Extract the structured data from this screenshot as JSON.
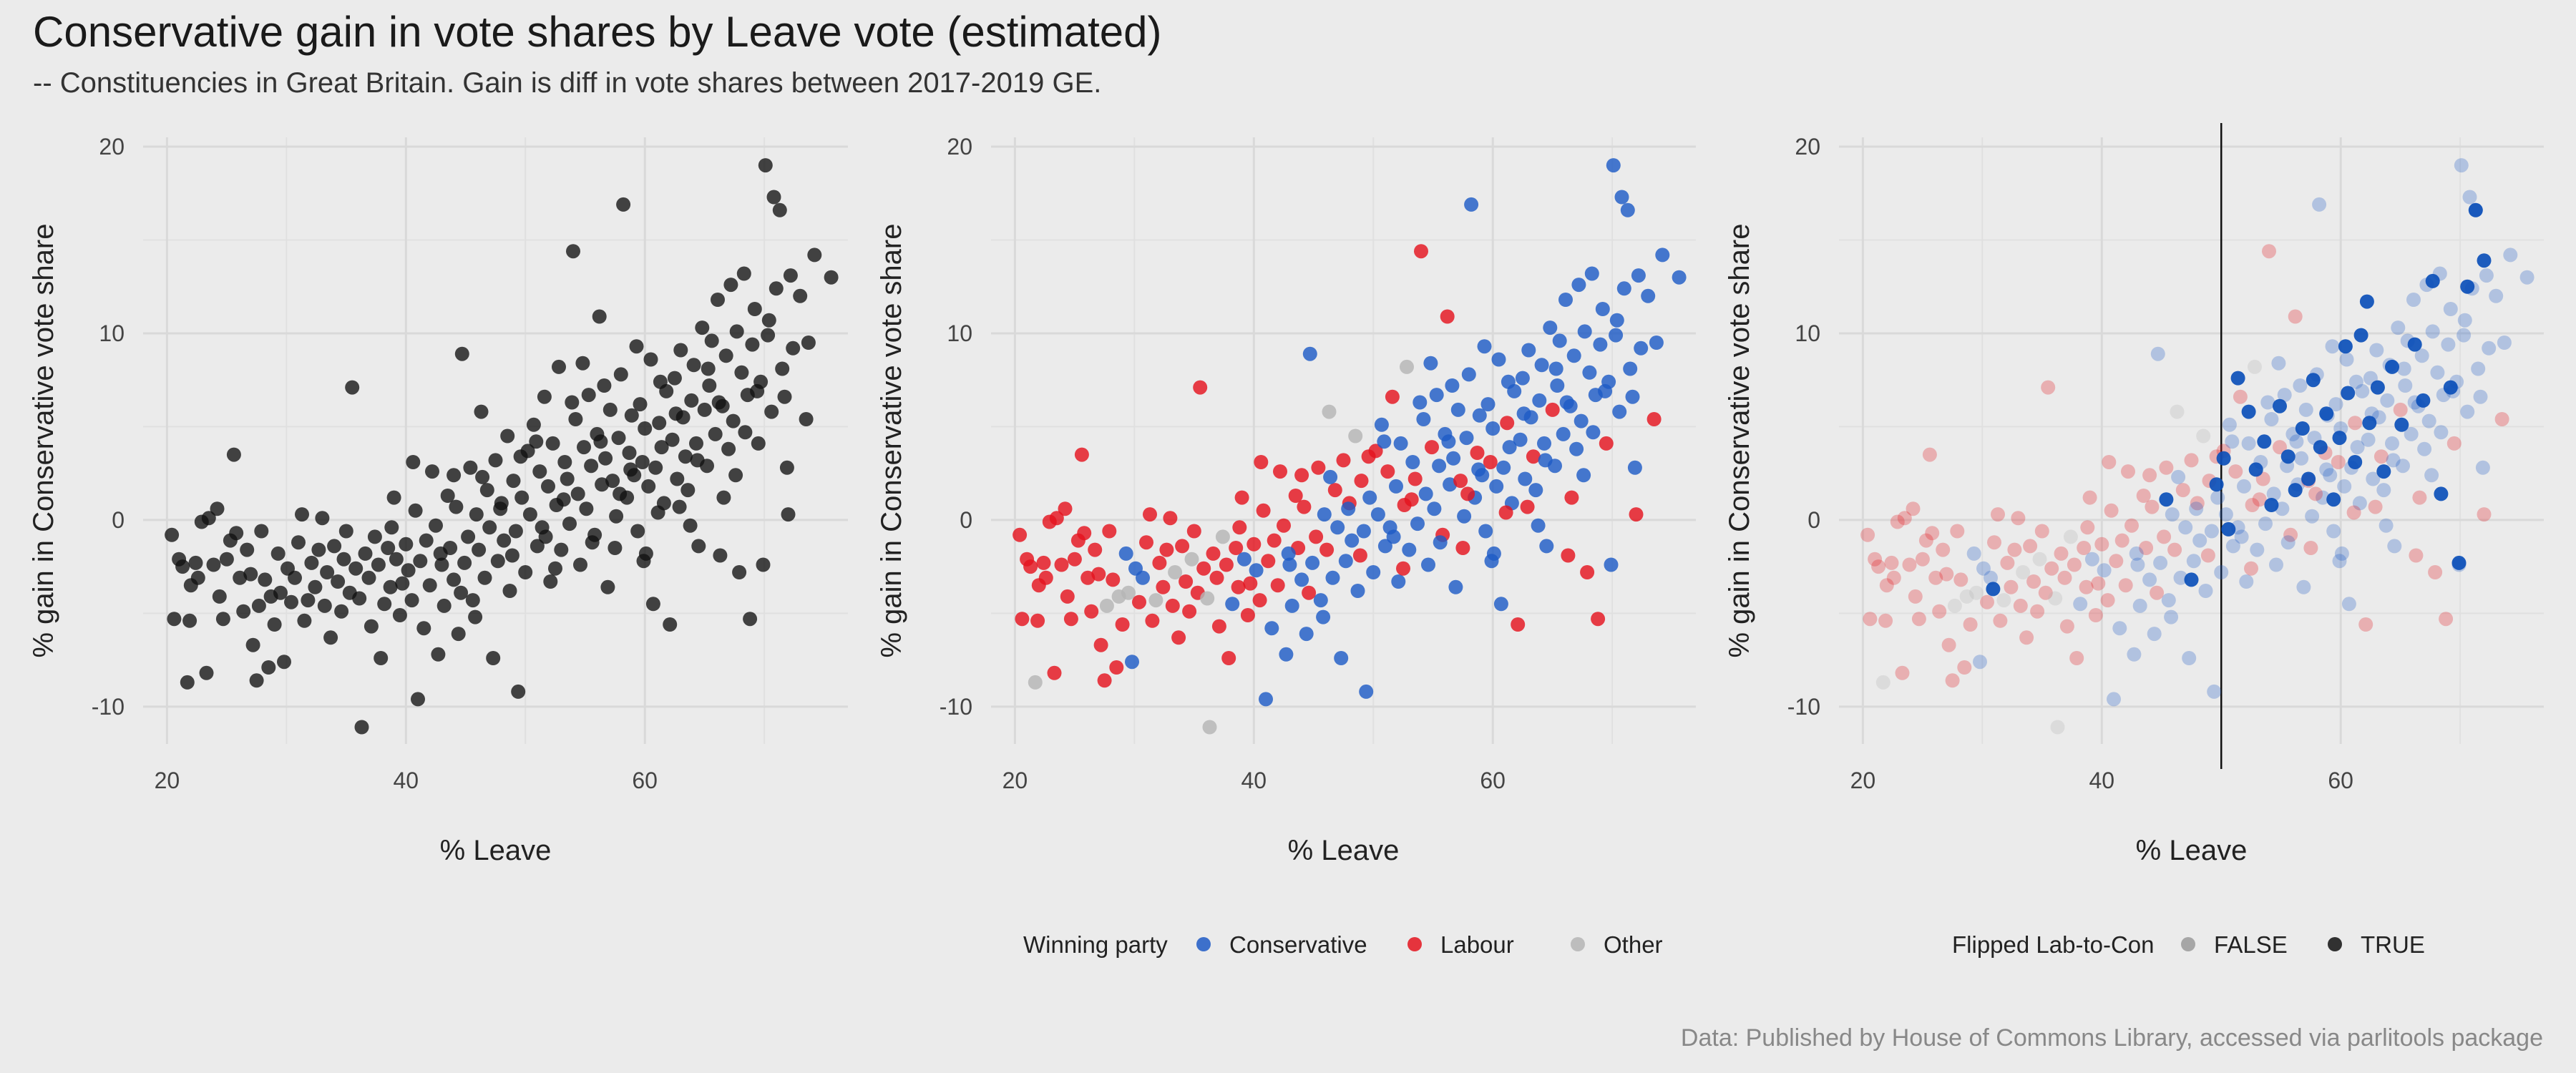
{
  "title": "Conservative gain in vote shares by Leave vote (estimated)",
  "subtitle": "-- Constituencies in Great Britain. Gain is diff in vote shares between 2017-2019 GE.",
  "caption": "Data: Published by House of Commons Library, accessed via parlitools package",
  "colors": {
    "conservative": "#1e5bc6",
    "labour": "#e4141e",
    "other": "#b5b5b5",
    "black": "#111111",
    "grid": "#d9d9d9"
  },
  "chart_data": [
    {
      "type": "scatter",
      "panel": "all-seats",
      "xlabel": "% Leave",
      "ylabel": "% gain in Conservative vote share",
      "xlim": [
        18,
        77
      ],
      "ylim": [
        -12,
        20.5
      ],
      "xticks": [
        20,
        40,
        60
      ],
      "yticks": [
        -10,
        0,
        10,
        20
      ],
      "grid": true,
      "color_by": "none",
      "legend": null
    },
    {
      "type": "scatter",
      "panel": "by-winning-party",
      "xlabel": "% Leave",
      "ylabel": "% gain in Conservative vote share",
      "xlim": [
        18,
        77
      ],
      "ylim": [
        -12,
        20.5
      ],
      "xticks": [
        20,
        40,
        60
      ],
      "yticks": [
        -10,
        0,
        10,
        20
      ],
      "grid": true,
      "color_by": "party",
      "legend": {
        "position": "bottom",
        "title": "Winning party",
        "entries": [
          "Conservative",
          "Labour",
          "Other"
        ]
      }
    },
    {
      "type": "scatter",
      "panel": "flipped-lab-to-con",
      "xlabel": "% Leave",
      "ylabel": "% gain in Conservative vote share",
      "xlim": [
        18,
        77
      ],
      "ylim": [
        -12,
        20.5
      ],
      "xticks": [
        20,
        40,
        60
      ],
      "yticks": [
        -10,
        0,
        10,
        20
      ],
      "grid": true,
      "color_by": "party-alpha-flipped",
      "vline_x": 50,
      "legend": {
        "position": "bottom",
        "title": "Flipped Lab-to-Con",
        "entries": [
          "FALSE",
          "TRUE"
        ]
      }
    }
  ],
  "points": [
    [
      20.4,
      -0.8,
      "lab"
    ],
    [
      20.6,
      -5.3,
      "lab"
    ],
    [
      21,
      -2.1,
      "lab"
    ],
    [
      21.3,
      -2.5,
      "lab"
    ],
    [
      21.7,
      -8.7,
      "oth"
    ],
    [
      21.9,
      -5.4,
      "lab"
    ],
    [
      22,
      -3.5,
      "lab"
    ],
    [
      22.4,
      -2.3,
      "lab"
    ],
    [
      22.6,
      -3.1,
      "lab"
    ],
    [
      22.9,
      -0.1,
      "lab"
    ],
    [
      23.3,
      -8.2,
      "lab"
    ],
    [
      23.5,
      0.1,
      "lab"
    ],
    [
      23.9,
      -2.4,
      "lab"
    ],
    [
      24.2,
      0.6,
      "lab"
    ],
    [
      24.4,
      -4.1,
      "lab"
    ],
    [
      24.7,
      -5.3,
      "lab"
    ],
    [
      25,
      -2.1,
      "lab"
    ],
    [
      25.3,
      -1.1,
      "lab"
    ],
    [
      25.6,
      3.5,
      "lab"
    ],
    [
      25.8,
      -0.7,
      "lab"
    ],
    [
      26.1,
      -3.1,
      "lab"
    ],
    [
      26.4,
      -4.9,
      "lab"
    ],
    [
      26.7,
      -1.6,
      "lab"
    ],
    [
      27,
      -2.9,
      "lab"
    ],
    [
      27.2,
      -6.7,
      "lab"
    ],
    [
      27.5,
      -8.6,
      "lab"
    ],
    [
      27.7,
      -4.6,
      "oth"
    ],
    [
      27.9,
      -0.6,
      "lab"
    ],
    [
      28.2,
      -3.2,
      "lab"
    ],
    [
      28.5,
      -7.9,
      "lab"
    ],
    [
      28.7,
      -4.1,
      "oth"
    ],
    [
      29,
      -5.6,
      "lab"
    ],
    [
      29.3,
      -1.8,
      "con"
    ],
    [
      29.5,
      -3.9,
      "oth"
    ],
    [
      29.8,
      -7.6,
      "con"
    ],
    [
      30.1,
      -2.6,
      "con"
    ],
    [
      30.4,
      -4.4,
      "lab"
    ],
    [
      30.7,
      -3.1,
      "con"
    ],
    [
      31,
      -1.2,
      "lab"
    ],
    [
      31.3,
      0.3,
      "lab"
    ],
    [
      31.5,
      -5.4,
      "lab"
    ],
    [
      31.8,
      -4.3,
      "oth"
    ],
    [
      32.1,
      -2.3,
      "lab"
    ],
    [
      32.4,
      -3.6,
      "lab"
    ],
    [
      32.7,
      -1.6,
      "lab"
    ],
    [
      33,
      0.1,
      "lab"
    ],
    [
      33.2,
      -4.6,
      "lab"
    ],
    [
      33.4,
      -2.8,
      "oth"
    ],
    [
      33.7,
      -6.3,
      "lab"
    ],
    [
      34,
      -1.4,
      "lab"
    ],
    [
      34.3,
      -3.3,
      "lab"
    ],
    [
      34.6,
      -4.9,
      "lab"
    ],
    [
      34.8,
      -2.1,
      "oth"
    ],
    [
      35,
      -0.6,
      "lab"
    ],
    [
      35.3,
      -3.9,
      "lab"
    ],
    [
      35.5,
      7.1,
      "lab"
    ],
    [
      35.8,
      -2.6,
      "lab"
    ],
    [
      36.1,
      -4.2,
      "oth"
    ],
    [
      36.3,
      -11.1,
      "oth"
    ],
    [
      36.6,
      -1.8,
      "lab"
    ],
    [
      36.9,
      -3.1,
      "lab"
    ],
    [
      37.1,
      -5.7,
      "lab"
    ],
    [
      37.4,
      -0.9,
      "oth"
    ],
    [
      37.7,
      -2.4,
      "lab"
    ],
    [
      37.9,
      -7.4,
      "lab"
    ],
    [
      38.2,
      -4.5,
      "con"
    ],
    [
      38.5,
      -1.5,
      "lab"
    ],
    [
      38.7,
      -3.6,
      "lab"
    ],
    [
      39,
      1.2,
      "lab"
    ],
    [
      39.2,
      -2.1,
      "con"
    ],
    [
      39.5,
      -5.1,
      "lab"
    ],
    [
      39.7,
      -3.4,
      "lab"
    ],
    [
      40,
      -1.3,
      "lab"
    ],
    [
      40.2,
      -2.7,
      "con"
    ],
    [
      40.5,
      -4.3,
      "lab"
    ],
    [
      40.8,
      0.5,
      "lab"
    ],
    [
      41,
      -9.6,
      "con"
    ],
    [
      41.2,
      -2.2,
      "lab"
    ],
    [
      41.5,
      -5.8,
      "con"
    ],
    [
      41.7,
      -1.1,
      "lab"
    ],
    [
      42,
      -3.5,
      "lab"
    ],
    [
      42.2,
      2.6,
      "lab"
    ],
    [
      42.5,
      -0.3,
      "lab"
    ],
    [
      42.7,
      -7.2,
      "con"
    ],
    [
      43,
      -2.4,
      "con"
    ],
    [
      43.2,
      -4.6,
      "con"
    ],
    [
      43.5,
      1.3,
      "lab"
    ],
    [
      43.7,
      -1.5,
      "lab"
    ],
    [
      44,
      -3.2,
      "con"
    ],
    [
      44.2,
      0.7,
      "lab"
    ],
    [
      44.4,
      -6.1,
      "con"
    ],
    [
      44.7,
      8.9,
      "con"
    ],
    [
      44.9,
      -2.3,
      "con"
    ],
    [
      45.2,
      -0.9,
      "lab"
    ],
    [
      45.4,
      2.8,
      "lab"
    ],
    [
      45.6,
      -4.3,
      "con"
    ],
    [
      45.9,
      0.3,
      "con"
    ],
    [
      46.1,
      -1.6,
      "lab"
    ],
    [
      46.3,
      5.8,
      "oth"
    ],
    [
      46.6,
      -3.1,
      "con"
    ],
    [
      46.8,
      1.6,
      "lab"
    ],
    [
      47,
      -0.4,
      "con"
    ],
    [
      47.3,
      -7.4,
      "con"
    ],
    [
      47.5,
      3.2,
      "lab"
    ],
    [
      47.7,
      -2.2,
      "con"
    ],
    [
      48,
      0.9,
      "lab"
    ],
    [
      48.2,
      -1.1,
      "con"
    ],
    [
      48.5,
      4.5,
      "oth"
    ],
    [
      48.7,
      -3.8,
      "con"
    ],
    [
      49,
      2.1,
      "lab"
    ],
    [
      49.2,
      -0.6,
      "con"
    ],
    [
      49.4,
      -9.2,
      "con"
    ],
    [
      49.7,
      1.2,
      "con"
    ],
    [
      50,
      -2.8,
      "con"
    ],
    [
      50.2,
      3.7,
      "lab"
    ],
    [
      50.4,
      0.3,
      "con"
    ],
    [
      50.7,
      5.1,
      "con"
    ],
    [
      51,
      -1.4,
      "con"
    ],
    [
      51.2,
      2.6,
      "lab"
    ],
    [
      51.4,
      -0.4,
      "con"
    ],
    [
      51.6,
      6.6,
      "lab"
    ],
    [
      51.9,
      1.8,
      "con"
    ],
    [
      52.1,
      -3.3,
      "con"
    ],
    [
      52.3,
      4.1,
      "con"
    ],
    [
      52.6,
      0.8,
      "lab"
    ],
    [
      52.8,
      8.2,
      "oth"
    ],
    [
      53,
      -1.6,
      "con"
    ],
    [
      53.3,
      3.1,
      "con"
    ],
    [
      53.5,
      2.2,
      "lab"
    ],
    [
      53.7,
      -0.2,
      "con"
    ],
    [
      54,
      14.4,
      "lab"
    ],
    [
      54.2,
      5.4,
      "con"
    ],
    [
      54.4,
      1.4,
      "con"
    ],
    [
      54.6,
      -2.4,
      "con"
    ],
    [
      54.9,
      3.9,
      "lab"
    ],
    [
      55.1,
      0.6,
      "con"
    ],
    [
      55.3,
      6.7,
      "con"
    ],
    [
      55.5,
      2.9,
      "con"
    ],
    [
      55.8,
      -0.8,
      "lab"
    ],
    [
      56,
      4.6,
      "con"
    ],
    [
      56.2,
      10.9,
      "lab"
    ],
    [
      56.4,
      1.9,
      "con"
    ],
    [
      56.7,
      3.3,
      "con"
    ],
    [
      56.9,
      -3.6,
      "con"
    ],
    [
      57.1,
      5.9,
      "con"
    ],
    [
      57.3,
      2.1,
      "lab"
    ],
    [
      57.6,
      0.2,
      "con"
    ],
    [
      57.8,
      4.4,
      "con"
    ],
    [
      58,
      7.8,
      "con"
    ],
    [
      58.2,
      16.9,
      "con"
    ],
    [
      58.5,
      1.2,
      "con"
    ],
    [
      58.7,
      3.6,
      "lab"
    ],
    [
      58.9,
      5.6,
      "con"
    ],
    [
      59.1,
      2.4,
      "con"
    ],
    [
      59.4,
      -0.6,
      "con"
    ],
    [
      59.6,
      6.2,
      "con"
    ],
    [
      59.8,
      3.1,
      "lab"
    ],
    [
      60,
      4.9,
      "con"
    ],
    [
      60.3,
      1.8,
      "con"
    ],
    [
      60.5,
      8.6,
      "con"
    ],
    [
      60.7,
      -4.5,
      "con"
    ],
    [
      60.9,
      2.8,
      "con"
    ],
    [
      61.2,
      5.2,
      "lab"
    ],
    [
      61.4,
      3.9,
      "con"
    ],
    [
      61.6,
      0.9,
      "con"
    ],
    [
      61.8,
      6.9,
      "con"
    ],
    [
      62.1,
      -5.6,
      "lab"
    ],
    [
      62.3,
      4.3,
      "con"
    ],
    [
      62.5,
      7.6,
      "con"
    ],
    [
      62.7,
      2.2,
      "con"
    ],
    [
      63,
      9.1,
      "con"
    ],
    [
      63.2,
      5.5,
      "con"
    ],
    [
      63.4,
      3.4,
      "lab"
    ],
    [
      63.6,
      1.6,
      "con"
    ],
    [
      63.9,
      6.4,
      "con"
    ],
    [
      64.1,
      8.3,
      "con"
    ],
    [
      64.3,
      4.1,
      "con"
    ],
    [
      64.5,
      -1.4,
      "con"
    ],
    [
      64.8,
      10.3,
      "con"
    ],
    [
      65,
      5.9,
      "lab"
    ],
    [
      65.2,
      2.9,
      "con"
    ],
    [
      65.4,
      7.2,
      "con"
    ],
    [
      65.6,
      9.6,
      "con"
    ],
    [
      65.9,
      4.6,
      "con"
    ],
    [
      66.1,
      11.8,
      "con"
    ],
    [
      66.3,
      -1.9,
      "lab"
    ],
    [
      66.5,
      6.1,
      "con"
    ],
    [
      66.8,
      8.8,
      "con"
    ],
    [
      67,
      3.8,
      "con"
    ],
    [
      67.2,
      12.6,
      "con"
    ],
    [
      67.4,
      5.3,
      "con"
    ],
    [
      67.7,
      10.1,
      "con"
    ],
    [
      67.9,
      -2.8,
      "lab"
    ],
    [
      68.1,
      7.9,
      "con"
    ],
    [
      68.3,
      13.2,
      "con"
    ],
    [
      68.6,
      6.7,
      "con"
    ],
    [
      68.8,
      -5.3,
      "lab"
    ],
    [
      69,
      9.4,
      "con"
    ],
    [
      69.2,
      11.3,
      "con"
    ],
    [
      69.5,
      4.1,
      "lab"
    ],
    [
      69.7,
      7.4,
      "con"
    ],
    [
      69.9,
      -2.4,
      "con"
    ],
    [
      70.1,
      19,
      "con"
    ],
    [
      70.4,
      10.7,
      "con"
    ],
    [
      70.6,
      5.8,
      "con"
    ],
    [
      70.8,
      17.3,
      "con"
    ],
    [
      71,
      12.4,
      "con"
    ],
    [
      71.3,
      16.6,
      "con"
    ],
    [
      71.5,
      8.1,
      "con"
    ],
    [
      71.7,
      6.6,
      "con"
    ],
    [
      72,
      0.3,
      "lab"
    ],
    [
      72.2,
      13.1,
      "con"
    ],
    [
      72.4,
      9.2,
      "con"
    ],
    [
      73,
      12,
      "con"
    ],
    [
      73.5,
      5.4,
      "lab"
    ],
    [
      74.2,
      14.2,
      "con"
    ],
    [
      75.6,
      13,
      "con"
    ],
    [
      44.6,
      -3.9,
      "lab"
    ],
    [
      46.4,
      2.3,
      "con"
    ],
    [
      48.9,
      -1.9,
      "lab"
    ],
    [
      50.9,
      4.2,
      "con"
    ],
    [
      52.5,
      -2.6,
      "lab"
    ],
    [
      53.9,
      6.3,
      "con"
    ],
    [
      55.6,
      -1.2,
      "con"
    ],
    [
      56.6,
      7.2,
      "con"
    ],
    [
      57.9,
      1.4,
      "lab"
    ],
    [
      59.3,
      9.3,
      "con"
    ],
    [
      60.1,
      -1.8,
      "con"
    ],
    [
      61.1,
      0.4,
      "lab"
    ],
    [
      62.6,
      5.7,
      "con"
    ],
    [
      63.8,
      -0.3,
      "con"
    ],
    [
      65.3,
      8.1,
      "con"
    ],
    [
      66.6,
      1.2,
      "lab"
    ],
    [
      68.4,
      4.7,
      "con"
    ],
    [
      70.3,
      9.9,
      "con"
    ],
    [
      71.9,
      2.8,
      "con"
    ],
    [
      73.7,
      9.5,
      "con"
    ],
    [
      38.8,
      -0.4,
      "lab"
    ],
    [
      40.6,
      3.1,
      "lab"
    ],
    [
      42.9,
      -1.8,
      "con"
    ],
    [
      44,
      2.4,
      "lab"
    ],
    [
      45.8,
      -5.2,
      "con"
    ],
    [
      47.9,
      0.6,
      "con"
    ],
    [
      49.6,
      3.4,
      "lab"
    ],
    [
      51.7,
      -0.9,
      "con"
    ],
    [
      53.2,
      1.1,
      "lab"
    ],
    [
      54.8,
      8.4,
      "con"
    ],
    [
      56.3,
      4.2,
      "con"
    ],
    [
      57.5,
      -1.5,
      "lab"
    ],
    [
      58.8,
      2.7,
      "con"
    ],
    [
      59.9,
      -2.2,
      "con"
    ],
    [
      61.3,
      7.4,
      "con"
    ],
    [
      62.9,
      0.7,
      "lab"
    ],
    [
      64.4,
      3.2,
      "con"
    ],
    [
      66.2,
      6.3,
      "con"
    ],
    [
      67.6,
      2.4,
      "con"
    ],
    [
      69.4,
      6.9,
      "con"
    ]
  ],
  "flipped": [
    [
      30.9,
      -3.7
    ],
    [
      45.4,
      1.1
    ],
    [
      47.5,
      -3.2
    ],
    [
      49.6,
      1.9
    ],
    [
      50.2,
      3.3
    ],
    [
      50.6,
      -0.5
    ],
    [
      51.4,
      7.6
    ],
    [
      52.3,
      5.8
    ],
    [
      52.9,
      2.7
    ],
    [
      53.6,
      4.2
    ],
    [
      54.2,
      0.8
    ],
    [
      54.9,
      6.1
    ],
    [
      55.6,
      3.4
    ],
    [
      56.2,
      1.6
    ],
    [
      56.8,
      4.9
    ],
    [
      57.3,
      2.2
    ],
    [
      57.7,
      7.5
    ],
    [
      58.3,
      3.9
    ],
    [
      58.8,
      5.7
    ],
    [
      59.4,
      1.1
    ],
    [
      59.9,
      4.4
    ],
    [
      60.6,
      6.8
    ],
    [
      61.2,
      3.1
    ],
    [
      61.7,
      9.9
    ],
    [
      62.4,
      5.2
    ],
    [
      63.1,
      7.1
    ],
    [
      63.6,
      2.6
    ],
    [
      64.3,
      8.2
    ],
    [
      65.1,
      5.1
    ],
    [
      66.2,
      9.4
    ],
    [
      66.9,
      6.4
    ],
    [
      67.7,
      12.8
    ],
    [
      68.4,
      1.4
    ],
    [
      69.2,
      7.1
    ],
    [
      69.9,
      -2.3
    ],
    [
      70.6,
      12.5
    ],
    [
      71.3,
      16.6
    ],
    [
      72,
      13.9
    ],
    [
      60.4,
      9.3
    ],
    [
      62.2,
      11.7
    ]
  ],
  "legends": {
    "party": {
      "title": "Winning party",
      "items": [
        {
          "label": "Conservative",
          "color": "#1e5bc6"
        },
        {
          "label": "Labour",
          "color": "#e4141e"
        },
        {
          "label": "Other",
          "color": "#b5b5b5"
        }
      ]
    },
    "flipped": {
      "title": "Flipped Lab-to-Con",
      "items": [
        {
          "label": "FALSE",
          "color": "#9a9a9a"
        },
        {
          "label": "TRUE",
          "color": "#111111"
        }
      ]
    }
  }
}
